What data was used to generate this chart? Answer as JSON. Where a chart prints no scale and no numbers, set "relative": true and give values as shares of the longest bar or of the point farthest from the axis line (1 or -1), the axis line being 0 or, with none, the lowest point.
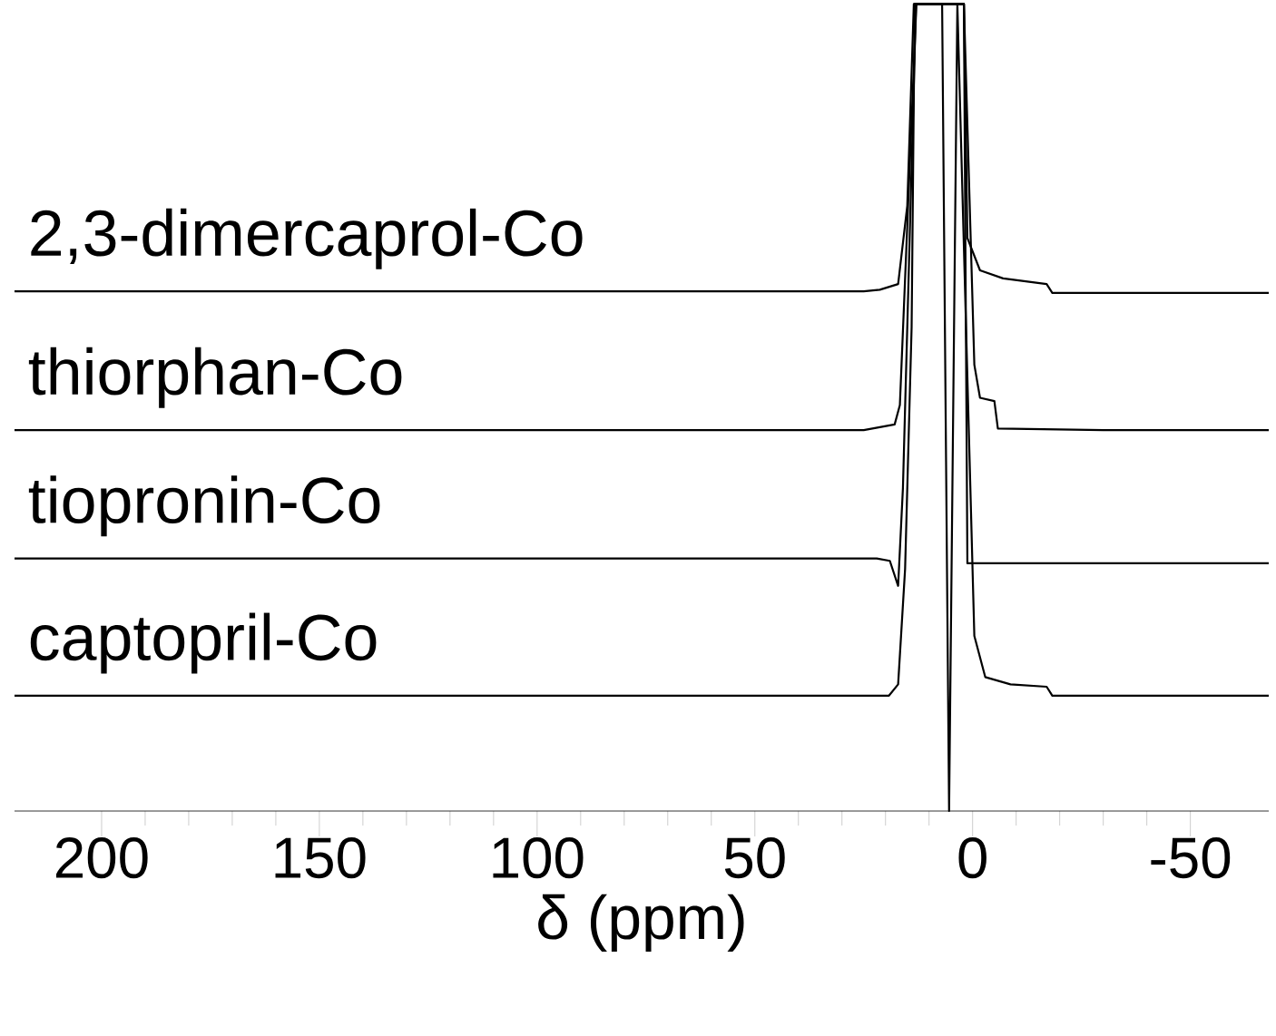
{
  "chart_data": {
    "type": "line",
    "relative": true,
    "xlabel": "δ (ppm)",
    "xlim": [
      220,
      -68
    ],
    "xticks": [
      200,
      150,
      100,
      50,
      0,
      -50
    ],
    "grid": false,
    "marker": "none",
    "line_style": "solid",
    "series": [
      {
        "name": "2,3-dimercaprol-Co",
        "color": "#000000",
        "x": [
          220,
          150,
          100,
          50,
          25,
          21.3,
          17.1,
          15,
          13.5,
          2,
          1.2,
          -1.7,
          -7,
          -17,
          -18.3,
          -40,
          -68
        ],
        "values": [
          0.644,
          0.644,
          0.644,
          0.644,
          0.644,
          0.646,
          0.653,
          0.75,
          1,
          1,
          0.71,
          0.67,
          0.66,
          0.653,
          0.642,
          0.642,
          0.642
        ]
      },
      {
        "name": "thiorphan-Co",
        "color": "#000000",
        "x": [
          220,
          150,
          100,
          50,
          25,
          17.9,
          16.7,
          12.9,
          2,
          -0.4,
          -1.7,
          -5,
          -5.8,
          -30,
          -68
        ],
        "values": [
          0.472,
          0.472,
          0.472,
          0.472,
          0.472,
          0.479,
          0.503,
          1,
          1,
          0.553,
          0.512,
          0.508,
          0.474,
          0.472,
          0.472
        ]
      },
      {
        "name": "tiopronin-Co",
        "color": "#000000",
        "x": [
          220,
          150,
          100,
          50,
          22,
          19,
          17.1,
          16,
          13,
          2,
          1.2,
          -30,
          -68
        ],
        "values": [
          0.313,
          0.313,
          0.313,
          0.313,
          0.313,
          0.31,
          0.279,
          0.4,
          1,
          1,
          0.307,
          0.307,
          0.307
        ]
      },
      {
        "name": "captopril-Co",
        "color": "#000000",
        "x": [
          220,
          150,
          100,
          50,
          19.2,
          17.1,
          15.5,
          14,
          13.3,
          7,
          5.4,
          3.5,
          -0.4,
          -2.9,
          -8.7,
          -17,
          -18.3,
          -40,
          -68
        ],
        "values": [
          0.143,
          0.143,
          0.143,
          0.143,
          0.143,
          0.157,
          0.3,
          0.6,
          1,
          1,
          0,
          1,
          0.217,
          0.166,
          0.157,
          0.154,
          0.143,
          0.143,
          0.143
        ]
      }
    ]
  }
}
